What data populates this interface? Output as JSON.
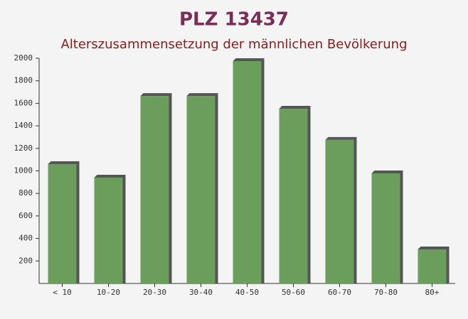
{
  "chart_data": {
    "type": "bar",
    "title": "PLZ 13437",
    "subtitle": "Alterszusammensetzung der männlichen Bevölkerung",
    "categories": [
      "< 10",
      "10-20",
      "20-30",
      "30-40",
      "40-50",
      "50-60",
      "60-70",
      "70-80",
      "80+"
    ],
    "values": [
      1060,
      940,
      1665,
      1665,
      1975,
      1552,
      1275,
      978,
      303
    ],
    "color": "#6b9e5c",
    "shadow_color": "#555555",
    "ylim": [
      0,
      2000
    ],
    "yticks": [
      200,
      400,
      600,
      800,
      1000,
      1200,
      1400,
      1600,
      1800,
      2000
    ]
  }
}
